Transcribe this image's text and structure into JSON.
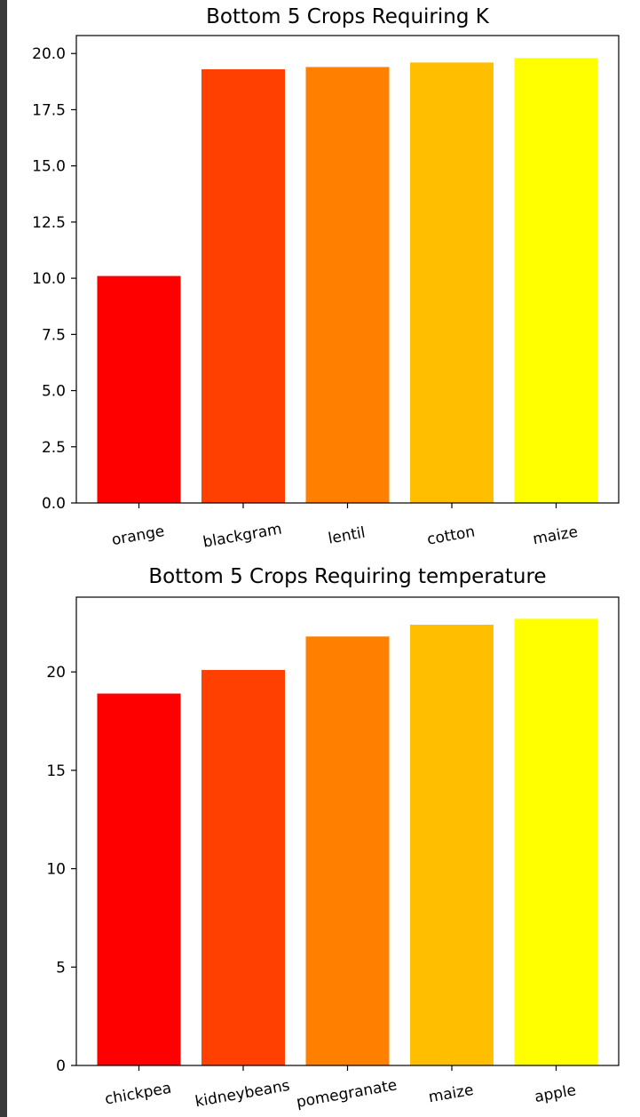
{
  "chart_data": [
    {
      "type": "bar",
      "title": "Bottom 5 Crops Requiring K",
      "categories": [
        "orange",
        "blackgram",
        "lentil",
        "cotton",
        "maize"
      ],
      "values": [
        10.1,
        19.3,
        19.4,
        19.6,
        19.8
      ],
      "colors": [
        "#ff0000",
        "#ff4000",
        "#ff8000",
        "#ffbf00",
        "#ffff00"
      ],
      "ylim": [
        0,
        20.8
      ],
      "yticks": [
        0.0,
        2.5,
        5.0,
        7.5,
        10.0,
        12.5,
        15.0,
        17.5,
        20.0
      ],
      "ytick_labels": [
        "0.0",
        "2.5",
        "5.0",
        "7.5",
        "10.0",
        "12.5",
        "15.0",
        "17.5",
        "20.0"
      ],
      "xlabel": "",
      "ylabel": "",
      "grid": false
    },
    {
      "type": "bar",
      "title": "Bottom 5 Crops Requiring temperature",
      "categories": [
        "chickpea",
        "kidneybeans",
        "pomegranate",
        "maize",
        "apple"
      ],
      "values": [
        18.9,
        20.1,
        21.8,
        22.4,
        22.7
      ],
      "colors": [
        "#ff0000",
        "#ff4000",
        "#ff8000",
        "#ffbf00",
        "#ffff00"
      ],
      "ylim": [
        0,
        23.8
      ],
      "yticks": [
        0,
        5,
        10,
        15,
        20
      ],
      "ytick_labels": [
        "0",
        "5",
        "10",
        "15",
        "20"
      ],
      "xlabel": "",
      "ylabel": "",
      "grid": false
    }
  ]
}
